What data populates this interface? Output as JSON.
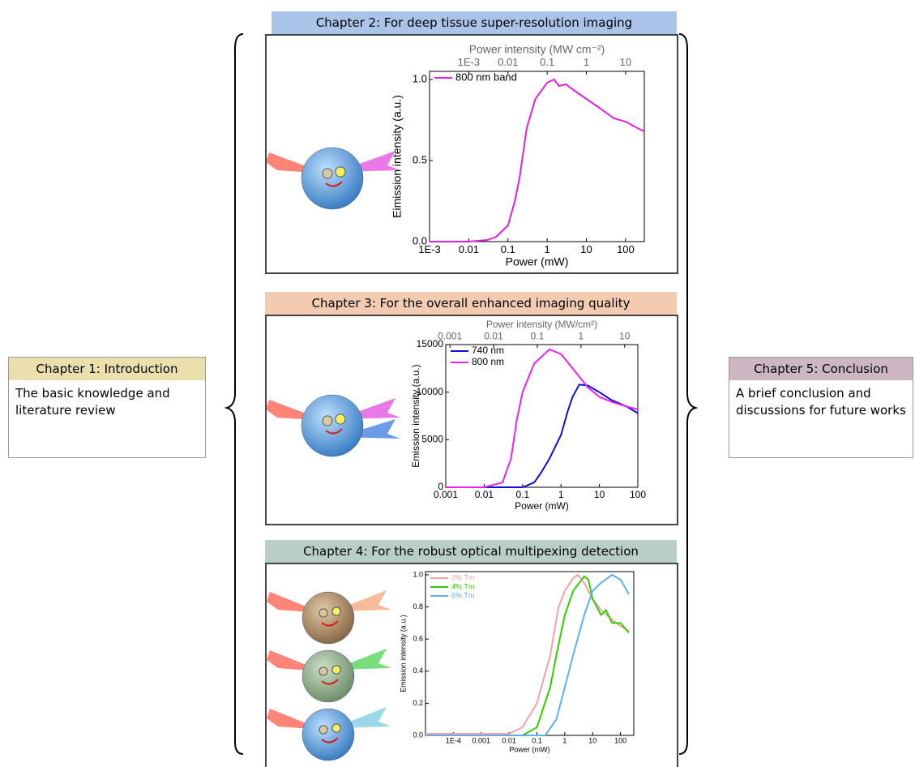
{
  "chapters": [
    {
      "title": "Chapter 1: Introduction",
      "text": "The basic knowledge and literature review"
    },
    {
      "title": "Chapter 2: For deep tissue super-resolution imaging"
    },
    {
      "title": "Chapter 3: For the overall enhanced imaging quality"
    },
    {
      "title": "Chapter 4: For the robust optical multipexing detection"
    },
    {
      "title": "Chapter 5: Conclusion",
      "text": "A brief conclusion and discussions for future works"
    }
  ],
  "chart_data": [
    {
      "type": "line",
      "xlog": true,
      "legend": "upper left",
      "x_label": "Power (mW)",
      "y_label": "Eimission intensity (a.u.)",
      "x2_label": "Power intensity (MW cm⁻²)",
      "xlim": [
        0.001,
        300
      ],
      "xticks": [
        {
          "value": 0.001,
          "label": "1E-3"
        },
        0.01,
        0.1,
        1,
        10,
        100
      ],
      "x2lim": [
        0.0001,
        30
      ],
      "x2ticks": [
        {
          "value": 0.001,
          "label": "1E-3"
        },
        0.01,
        0.1,
        1,
        10
      ],
      "ylim": [
        0,
        1.05
      ],
      "yticks": [
        {
          "value": 0,
          "label": "0.0"
        },
        0.5,
        {
          "value": 1,
          "label": "1.0"
        }
      ],
      "series": [
        {
          "name": "800 nm band",
          "color": "#e020e0",
          "x": [
            0.001,
            0.01,
            0.03,
            0.05,
            0.1,
            0.15,
            0.2,
            0.3,
            0.5,
            1,
            1.5,
            2,
            3,
            5,
            10,
            20,
            50,
            100,
            200,
            300
          ],
          "values": [
            0,
            0,
            0.01,
            0.03,
            0.1,
            0.25,
            0.4,
            0.7,
            0.88,
            0.98,
            1.0,
            0.96,
            0.97,
            0.93,
            0.88,
            0.83,
            0.76,
            0.74,
            0.7,
            0.68
          ]
        }
      ]
    },
    {
      "type": "line",
      "xlog": true,
      "legend": "upper left",
      "x_label": "Power (mW)",
      "y_label": "Emission intensity (a.u.)",
      "x2_label": "Power intensity (MW/cm²)",
      "xlim": [
        0.001,
        100
      ],
      "xticks": [
        0.001,
        0.01,
        0.1,
        1,
        10,
        100
      ],
      "x2lim": [
        0.0008,
        20
      ],
      "x2ticks": [
        0.001,
        0.01,
        0.1,
        1,
        10
      ],
      "ylim": [
        0,
        15000
      ],
      "yticks": [
        0,
        5000,
        10000,
        15000
      ],
      "series": [
        {
          "name": "740 nm",
          "color": "#1010d0",
          "x": [
            0.001,
            0.01,
            0.1,
            0.2,
            0.3,
            0.5,
            1,
            1.5,
            2,
            3,
            5,
            10,
            20,
            50,
            100
          ],
          "values": [
            0,
            0,
            0,
            500,
            1500,
            3000,
            5500,
            8000,
            9500,
            10800,
            10700,
            10000,
            9200,
            8500,
            7800
          ]
        },
        {
          "name": "800 nm",
          "color": "#f020f0",
          "x": [
            0.001,
            0.01,
            0.03,
            0.05,
            0.07,
            0.1,
            0.2,
            0.5,
            1,
            2,
            5,
            10,
            20,
            50,
            100
          ],
          "values": [
            0,
            0,
            500,
            3000,
            7000,
            10000,
            13000,
            14500,
            14000,
            12500,
            10500,
            9500,
            9000,
            8500,
            8200
          ]
        }
      ]
    },
    {
      "type": "line",
      "xlog": true,
      "legend": "upper left",
      "x_label": "Power (mW)",
      "y_label": "Emission intensity (a.u.)",
      "xlim": [
        1e-05,
        300
      ],
      "xticks": [
        {
          "value": 0.0001,
          "label": "1E-4"
        },
        0.001,
        0.01,
        0.1,
        1,
        10,
        100
      ],
      "ylim": [
        0,
        1.02
      ],
      "yticks": [
        {
          "value": 0,
          "label": "0.0"
        },
        0.2,
        0.4,
        0.6,
        0.8,
        {
          "value": 1,
          "label": "1.0"
        }
      ],
      "series": [
        {
          "name": "2% Tm",
          "color": "#f4a0a8",
          "x": [
            1e-05,
            0.01,
            0.03,
            0.1,
            0.3,
            0.6,
            1,
            2,
            3,
            5,
            10,
            20,
            50,
            100,
            200
          ],
          "values": [
            0.01,
            0.01,
            0.05,
            0.2,
            0.5,
            0.8,
            0.9,
            0.98,
            1.0,
            0.95,
            0.85,
            0.78,
            0.72,
            0.68,
            0.65
          ]
        },
        {
          "name": "4% Tm",
          "color": "#33cc00",
          "x": [
            1e-05,
            0.03,
            0.1,
            0.3,
            0.5,
            1,
            2,
            5,
            7,
            10,
            20,
            30,
            50,
            100,
            200
          ],
          "values": [
            0,
            0,
            0.05,
            0.3,
            0.5,
            0.75,
            0.9,
            0.99,
            0.97,
            0.85,
            0.75,
            0.78,
            0.7,
            0.7,
            0.64
          ]
        },
        {
          "name": "6% Tm",
          "color": "#5fb0e8",
          "x": [
            1e-05,
            0.2,
            0.5,
            1,
            2,
            5,
            10,
            20,
            50,
            100,
            200
          ],
          "values": [
            0,
            0,
            0.1,
            0.3,
            0.5,
            0.75,
            0.9,
            0.95,
            1.0,
            0.97,
            0.88
          ]
        }
      ]
    }
  ]
}
